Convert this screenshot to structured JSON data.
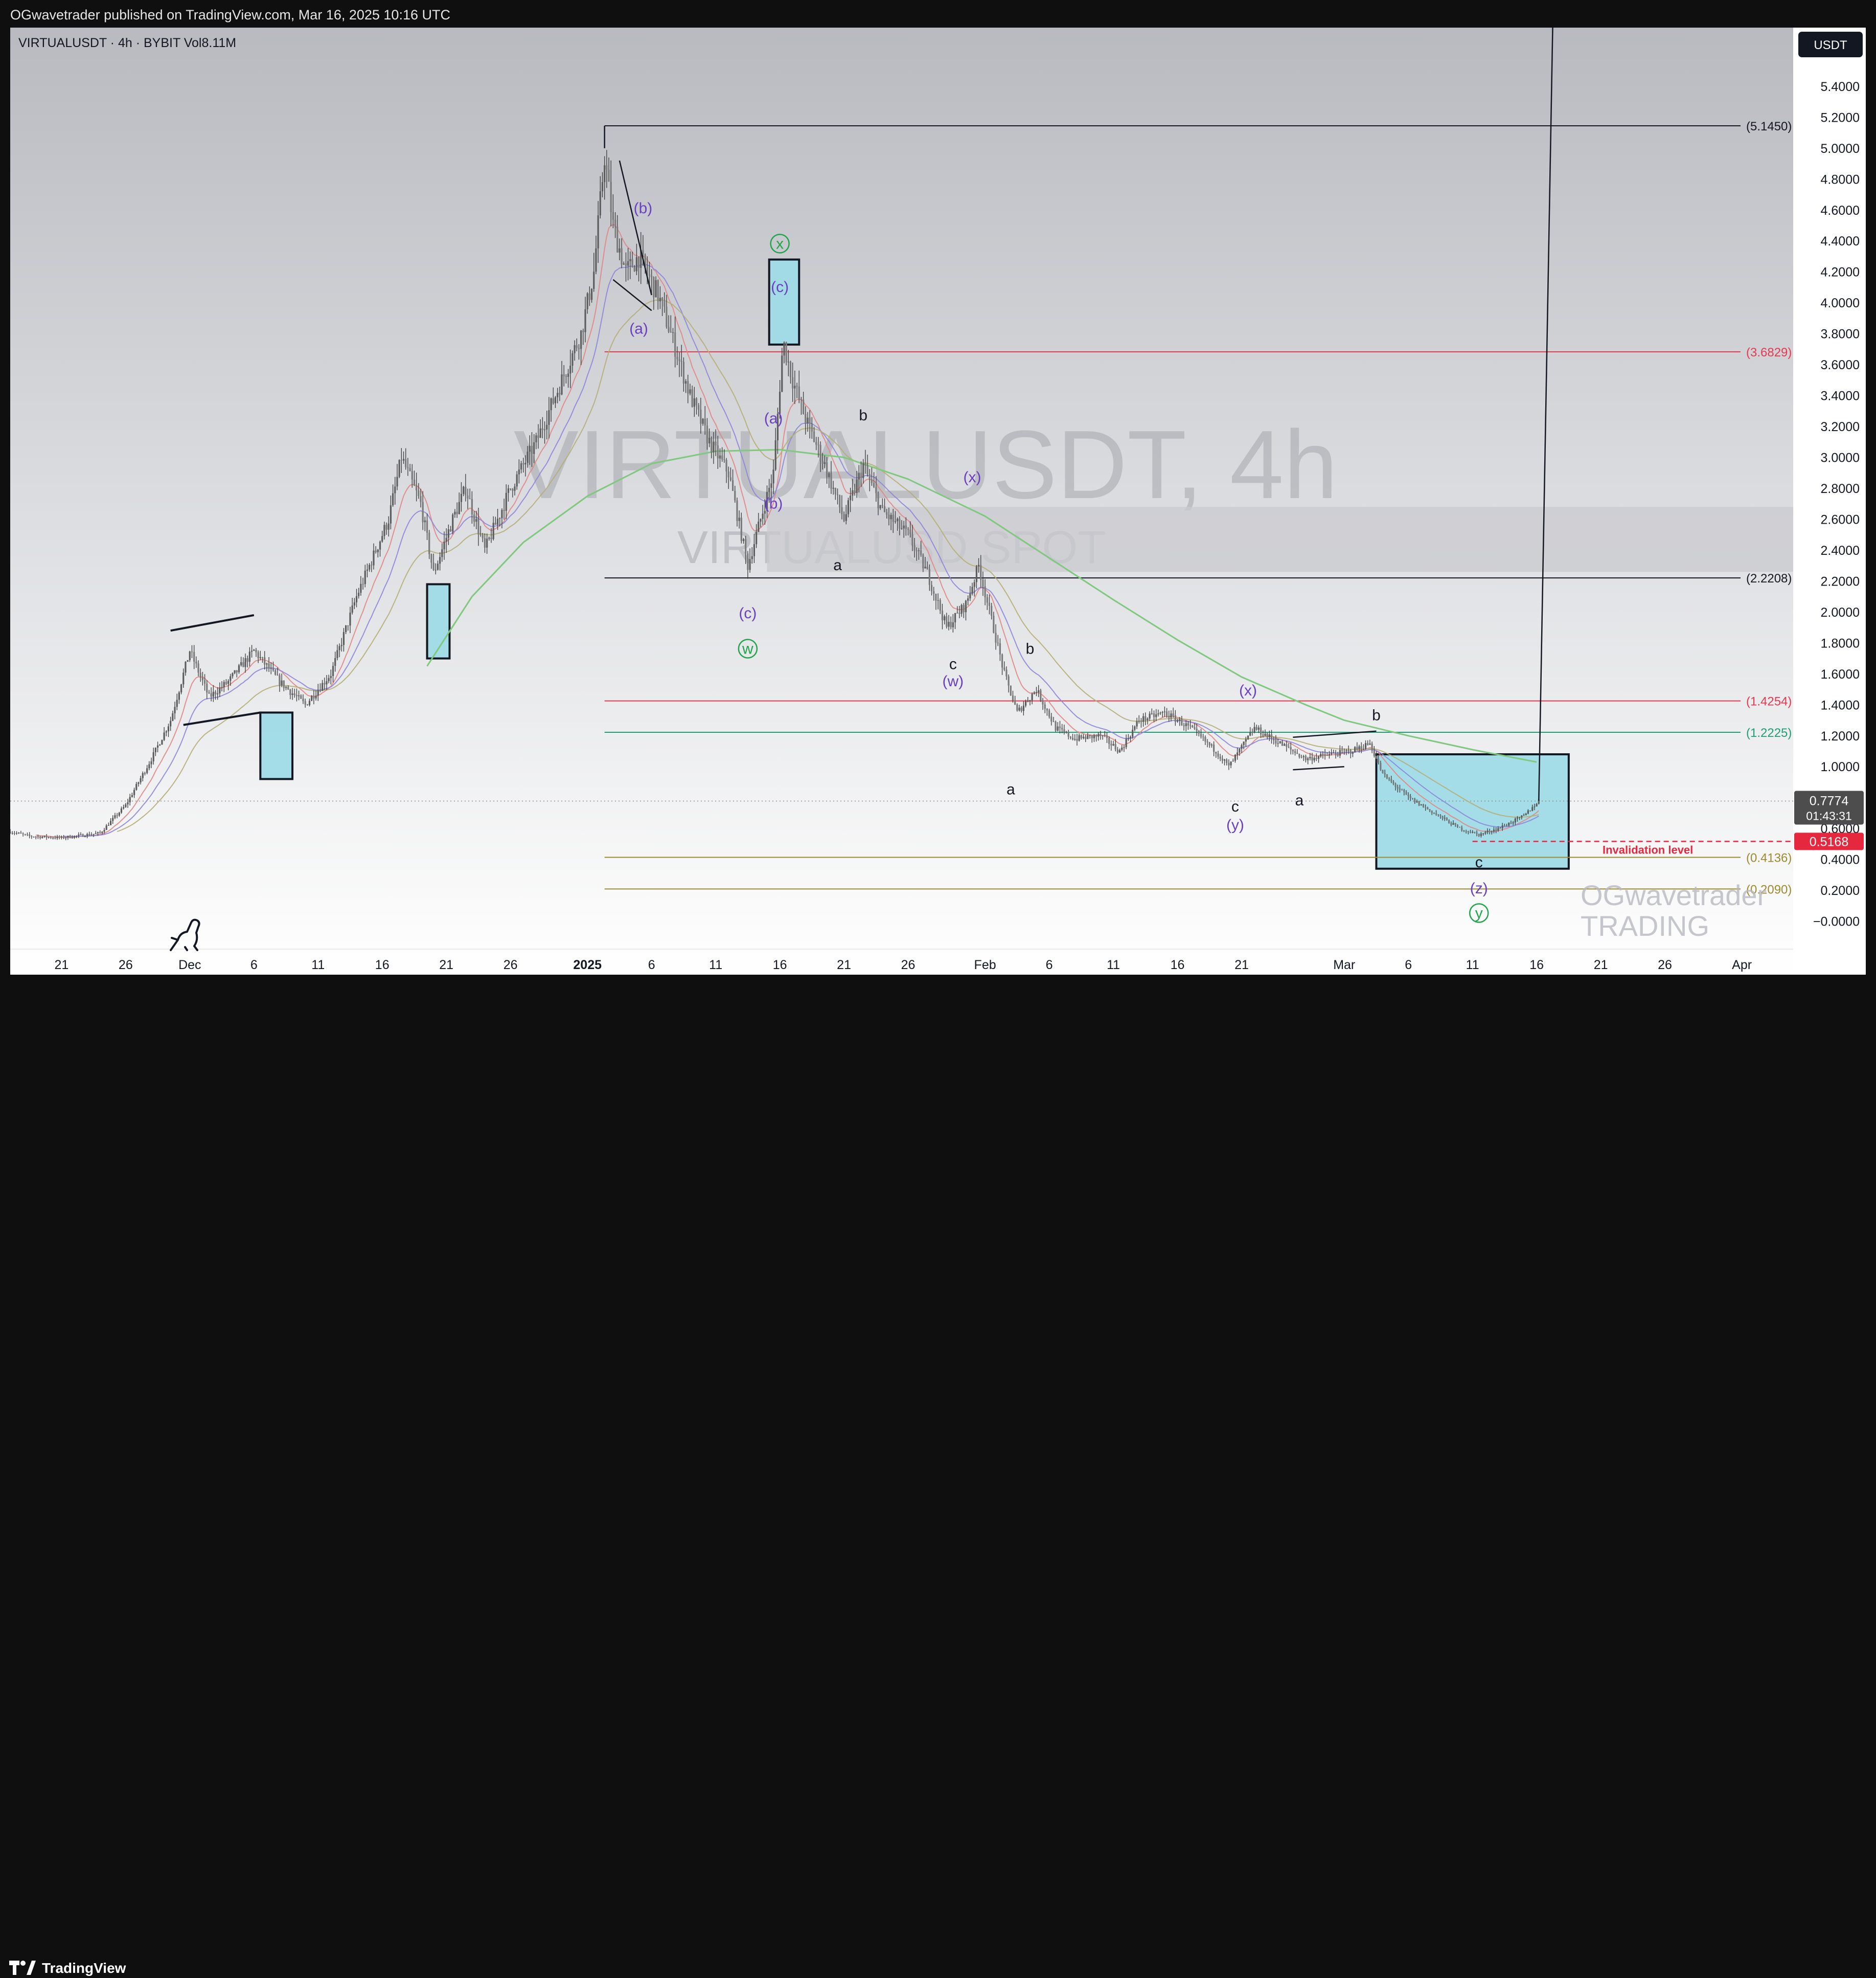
{
  "header": {
    "published_text": "OGwavetrader published on TradingView.com, Mar 16, 2025 10:16 UTC"
  },
  "footer": {
    "brand": "TradingView"
  },
  "colors": {
    "up_candle": "#5d5d5d",
    "down_candle": "#7a7a7a",
    "ema_long": "#7fc97f",
    "box_fill": "#9fdbe6",
    "resistance_red": "#e53950",
    "support_green": "#1e9e74",
    "fib_gold": "#9c8a2e",
    "label_purple": "#6a3fc2",
    "label_green": "#22a44a",
    "invalidation_red": "#e5283d"
  },
  "chart_data": {
    "type": "candlestick",
    "symbol_line": {
      "symbol": "VIRTUALUSDT",
      "interval": "4h",
      "exchange": "BYBIT",
      "volume": "Vol",
      "volume_value": "8.11M"
    },
    "watermark": {
      "main": "VIRTUALUSDT, 4h",
      "sub": "VIRTUALUSD SPOT"
    },
    "author_watermark": [
      "OGwavetrader",
      "TRADING"
    ],
    "currency_label": "USDT",
    "y_range": [
      -0.18,
      5.78
    ],
    "y_ticks": [
      {
        "v": 5.4,
        "label": "5.4000"
      },
      {
        "v": 5.2,
        "label": "5.2000"
      },
      {
        "v": 5.0,
        "label": "5.0000"
      },
      {
        "v": 4.8,
        "label": "4.8000"
      },
      {
        "v": 4.6,
        "label": "4.6000"
      },
      {
        "v": 4.4,
        "label": "4.4000"
      },
      {
        "v": 4.2,
        "label": "4.2000"
      },
      {
        "v": 4.0,
        "label": "4.0000"
      },
      {
        "v": 3.8,
        "label": "3.8000"
      },
      {
        "v": 3.6,
        "label": "3.6000"
      },
      {
        "v": 3.4,
        "label": "3.4000"
      },
      {
        "v": 3.2,
        "label": "3.2000"
      },
      {
        "v": 3.0,
        "label": "3.0000"
      },
      {
        "v": 2.8,
        "label": "2.8000"
      },
      {
        "v": 2.6,
        "label": "2.6000"
      },
      {
        "v": 2.4,
        "label": "2.4000"
      },
      {
        "v": 2.2,
        "label": "2.2000"
      },
      {
        "v": 2.0,
        "label": "2.0000"
      },
      {
        "v": 1.8,
        "label": "1.8000"
      },
      {
        "v": 1.6,
        "label": "1.6000"
      },
      {
        "v": 1.4,
        "label": "1.4000"
      },
      {
        "v": 1.2,
        "label": "1.2000"
      },
      {
        "v": 1.0,
        "label": "1.0000"
      },
      {
        "v": 0.6,
        "label": "0.6000"
      },
      {
        "v": 0.4,
        "label": "0.4000"
      },
      {
        "v": 0.2,
        "label": "0.2000"
      },
      {
        "v": 0.0,
        "label": "−0.0000"
      }
    ],
    "x_range": [
      "2024-11-17T00:00",
      "2025-04-05T00:00"
    ],
    "x_ticks": [
      {
        "date": "2024-11-21",
        "label": "21"
      },
      {
        "date": "2024-11-26",
        "label": "26"
      },
      {
        "date": "2024-12-01",
        "label": "Dec"
      },
      {
        "date": "2024-12-06",
        "label": "6"
      },
      {
        "date": "2024-12-11",
        "label": "11"
      },
      {
        "date": "2024-12-16",
        "label": "16"
      },
      {
        "date": "2024-12-21",
        "label": "21"
      },
      {
        "date": "2024-12-26",
        "label": "26"
      },
      {
        "date": "2025-01-01",
        "label": "2025",
        "bold": true
      },
      {
        "date": "2025-01-06",
        "label": "6"
      },
      {
        "date": "2025-01-11",
        "label": "11"
      },
      {
        "date": "2025-01-16",
        "label": "16"
      },
      {
        "date": "2025-01-21",
        "label": "21"
      },
      {
        "date": "2025-01-26",
        "label": "26"
      },
      {
        "date": "2025-02-01",
        "label": "Feb"
      },
      {
        "date": "2025-02-06",
        "label": "6"
      },
      {
        "date": "2025-02-11",
        "label": "11"
      },
      {
        "date": "2025-02-16",
        "label": "16"
      },
      {
        "date": "2025-02-21",
        "label": "21"
      },
      {
        "date": "2025-03-01",
        "label": "Mar"
      },
      {
        "date": "2025-03-06",
        "label": "6"
      },
      {
        "date": "2025-03-11",
        "label": "11"
      },
      {
        "date": "2025-03-16",
        "label": "16"
      },
      {
        "date": "2025-03-21",
        "label": "21"
      },
      {
        "date": "2025-03-26",
        "label": "26"
      },
      {
        "date": "2025-04-01",
        "label": "Apr"
      }
    ],
    "price_path": [
      [
        "2024-11-17T00:00",
        0.58
      ],
      [
        "2024-11-18T12:00",
        0.55
      ],
      [
        "2024-11-21T00:00",
        0.54
      ],
      [
        "2024-11-24T00:00",
        0.57
      ],
      [
        "2024-11-26T00:00",
        0.75
      ],
      [
        "2024-11-28T00:00",
        1.05
      ],
      [
        "2024-11-29T12:00",
        1.3
      ],
      [
        "2024-12-01T00:00",
        1.75
      ],
      [
        "2024-12-02T12:00",
        1.45
      ],
      [
        "2024-12-04T00:00",
        1.55
      ],
      [
        "2024-12-06T00:00",
        1.75
      ],
      [
        "2024-12-08T00:00",
        1.55
      ],
      [
        "2024-12-10T00:00",
        1.4
      ],
      [
        "2024-12-12T00:00",
        1.6
      ],
      [
        "2024-12-14T00:00",
        2.1
      ],
      [
        "2024-12-16T12:00",
        2.6
      ],
      [
        "2024-12-17T12:00",
        3.0
      ],
      [
        "2024-12-19T00:00",
        2.7
      ],
      [
        "2024-12-20T00:00",
        2.25
      ],
      [
        "2024-12-21T12:00",
        2.6
      ],
      [
        "2024-12-22T12:00",
        2.8
      ],
      [
        "2024-12-24T00:00",
        2.4
      ],
      [
        "2024-12-26T00:00",
        2.8
      ],
      [
        "2024-12-28T00:00",
        3.1
      ],
      [
        "2024-12-30T00:00",
        3.5
      ],
      [
        "2024-12-31T12:00",
        3.8
      ],
      [
        "2025-01-01T12:00",
        4.2
      ],
      [
        "2025-01-02T08:00",
        4.95
      ],
      [
        "2025-01-03T00:00",
        4.5
      ],
      [
        "2025-01-04T00:00",
        4.2
      ],
      [
        "2025-01-05T00:00",
        4.3
      ],
      [
        "2025-01-06T12:00",
        4.05
      ],
      [
        "2025-01-07T12:00",
        3.8
      ],
      [
        "2025-01-09T00:00",
        3.4
      ],
      [
        "2025-01-10T12:00",
        3.1
      ],
      [
        "2025-01-12T00:00",
        2.9
      ],
      [
        "2025-01-13T12:00",
        2.3
      ],
      [
        "2025-01-14T12:00",
        2.6
      ],
      [
        "2025-01-15T12:00",
        2.9
      ],
      [
        "2025-01-16T06:00",
        3.75
      ],
      [
        "2025-01-17T00:00",
        3.5
      ],
      [
        "2025-01-18T00:00",
        3.25
      ],
      [
        "2025-01-19T12:00",
        2.95
      ],
      [
        "2025-01-21T00:00",
        2.6
      ],
      [
        "2025-01-22T12:00",
        2.95
      ],
      [
        "2025-01-24T00:00",
        2.65
      ],
      [
        "2025-01-26T00:00",
        2.5
      ],
      [
        "2025-01-27T12:00",
        2.25
      ],
      [
        "2025-01-29T00:00",
        1.9
      ],
      [
        "2025-01-30T12:00",
        2.05
      ],
      [
        "2025-01-31T12:00",
        2.3
      ],
      [
        "2025-02-01T12:00",
        1.95
      ],
      [
        "2025-02-02T12:00",
        1.6
      ],
      [
        "2025-02-03T12:00",
        1.35
      ],
      [
        "2025-02-05T00:00",
        1.5
      ],
      [
        "2025-02-06T12:00",
        1.25
      ],
      [
        "2025-02-08T00:00",
        1.18
      ],
      [
        "2025-02-10T00:00",
        1.2
      ],
      [
        "2025-02-11T12:00",
        1.1
      ],
      [
        "2025-02-13T00:00",
        1.3
      ],
      [
        "2025-02-15T00:00",
        1.35
      ],
      [
        "2025-02-17T00:00",
        1.25
      ],
      [
        "2025-02-19T00:00",
        1.1
      ],
      [
        "2025-02-20T00:00",
        1.0
      ],
      [
        "2025-02-22T00:00",
        1.25
      ],
      [
        "2025-02-24T00:00",
        1.15
      ],
      [
        "2025-02-26T00:00",
        1.05
      ],
      [
        "2025-02-28T00:00",
        1.08
      ],
      [
        "2025-03-01T12:00",
        1.1
      ],
      [
        "2025-03-03T00:00",
        1.15
      ],
      [
        "2025-03-04T00:00",
        0.95
      ],
      [
        "2025-03-06T00:00",
        0.8
      ],
      [
        "2025-03-08T00:00",
        0.7
      ],
      [
        "2025-03-10T00:00",
        0.6
      ],
      [
        "2025-03-11T12:00",
        0.56
      ],
      [
        "2025-03-13T00:00",
        0.6
      ],
      [
        "2025-03-15T00:00",
        0.68
      ],
      [
        "2025-03-16T04:00",
        0.78
      ]
    ],
    "ema_long_path": [
      [
        "2024-12-19T12:00",
        1.65
      ],
      [
        "2024-12-23T00:00",
        2.1
      ],
      [
        "2024-12-27T00:00",
        2.45
      ],
      [
        "2025-01-01T00:00",
        2.75
      ],
      [
        "2025-01-06T00:00",
        2.96
      ],
      [
        "2025-01-11T00:00",
        3.04
      ],
      [
        "2025-01-16T00:00",
        3.05
      ],
      [
        "2025-01-21T00:00",
        3.0
      ],
      [
        "2025-01-26T00:00",
        2.86
      ],
      [
        "2025-02-01T00:00",
        2.62
      ],
      [
        "2025-02-06T00:00",
        2.35
      ],
      [
        "2025-02-11T00:00",
        2.08
      ],
      [
        "2025-02-16T00:00",
        1.82
      ],
      [
        "2025-02-21T00:00",
        1.58
      ],
      [
        "2025-02-26T00:00",
        1.4
      ],
      [
        "2025-03-01T00:00",
        1.3
      ],
      [
        "2025-03-06T00:00",
        1.2
      ],
      [
        "2025-03-11T00:00",
        1.11
      ],
      [
        "2025-03-16T00:00",
        1.03
      ]
    ],
    "horizontal_levels": [
      {
        "value": 5.145,
        "label": "(5.1450)",
        "color": "#131722",
        "from": "2025-01-02T08:00"
      },
      {
        "value": 3.6829,
        "label": "(3.6829)",
        "color": "#e53950",
        "from": "2025-01-02T08:00"
      },
      {
        "value": 2.2208,
        "label": "(2.2208)",
        "color": "#131722",
        "from": "2025-01-02T08:00"
      },
      {
        "value": 1.4254,
        "label": "(1.4254)",
        "color": "#e53950",
        "from": "2025-01-02T08:00"
      },
      {
        "value": 1.2225,
        "label": "(1.2225)",
        "color": "#1e9e74",
        "from": "2025-01-02T08:00"
      },
      {
        "value": 0.4136,
        "label": "(0.4136)",
        "color": "#9c8a2e",
        "from": "2025-01-02T08:00"
      },
      {
        "value": 0.209,
        "label": "(0.2090)",
        "color": "#9c8a2e",
        "from": "2025-01-02T08:00"
      }
    ],
    "zone": {
      "from": "2025-01-15T00:00",
      "to": "2025-04-05T00:00",
      "low": 2.26,
      "high": 2.68
    },
    "boxes": [
      {
        "from": "2024-12-06T12:00",
        "to": "2024-12-09T00:00",
        "low": 0.92,
        "high": 1.35
      },
      {
        "from": "2024-12-19T12:00",
        "to": "2024-12-21T06:00",
        "low": 1.7,
        "high": 2.18
      },
      {
        "from": "2025-01-15T04:00",
        "to": "2025-01-17T12:00",
        "low": 3.73,
        "high": 4.28
      },
      {
        "from": "2025-03-03T12:00",
        "to": "2025-03-18T12:00",
        "low": 0.34,
        "high": 1.08
      }
    ],
    "wave_labels": [
      {
        "text": "(b)",
        "date": "2025-01-05T08:00",
        "value": 4.58,
        "color": "#6a3fc2"
      },
      {
        "text": "(a)",
        "date": "2025-01-05T00:00",
        "value": 3.8,
        "color": "#6a3fc2"
      },
      {
        "text": "x",
        "date": "2025-01-16T00:00",
        "value": 4.35,
        "color": "#22a44a",
        "circle": true
      },
      {
        "text": "(c)",
        "date": "2025-01-16T00:00",
        "value": 4.07,
        "color": "#6a3fc2"
      },
      {
        "text": "(a)",
        "date": "2025-01-15T12:00",
        "value": 3.22,
        "color": "#6a3fc2"
      },
      {
        "text": "(b)",
        "date": "2025-01-15T12:00",
        "value": 2.67,
        "color": "#6a3fc2"
      },
      {
        "text": "b",
        "date": "2025-01-22T12:00",
        "value": 3.24,
        "color": "#131722"
      },
      {
        "text": "(x)",
        "date": "2025-01-31T00:00",
        "value": 2.84,
        "color": "#6a3fc2"
      },
      {
        "text": "a",
        "date": "2025-01-20T12:00",
        "value": 2.27,
        "color": "#131722"
      },
      {
        "text": "(c)",
        "date": "2025-01-13T12:00",
        "value": 1.96,
        "color": "#6a3fc2"
      },
      {
        "text": "w",
        "date": "2025-01-13T12:00",
        "value": 1.73,
        "color": "#22a44a",
        "circle": true
      },
      {
        "text": "c",
        "date": "2025-01-29T12:00",
        "value": 1.63,
        "color": "#131722"
      },
      {
        "text": "(w)",
        "date": "2025-01-29T12:00",
        "value": 1.52,
        "color": "#6a3fc2"
      },
      {
        "text": "b",
        "date": "2025-02-04T12:00",
        "value": 1.73,
        "color": "#131722"
      },
      {
        "text": "a",
        "date": "2025-02-03T00:00",
        "value": 0.82,
        "color": "#131722"
      },
      {
        "text": "(x)",
        "date": "2025-02-21T12:00",
        "value": 1.46,
        "color": "#6a3fc2"
      },
      {
        "text": "c",
        "date": "2025-02-20T12:00",
        "value": 0.71,
        "color": "#131722"
      },
      {
        "text": "(y)",
        "date": "2025-02-20T12:00",
        "value": 0.59,
        "color": "#6a3fc2"
      },
      {
        "text": "a",
        "date": "2025-02-25T12:00",
        "value": 0.75,
        "color": "#131722"
      },
      {
        "text": "b",
        "date": "2025-03-03T12:00",
        "value": 1.3,
        "color": "#131722"
      },
      {
        "text": "c",
        "date": "2025-03-11T12:00",
        "value": 0.35,
        "color": "#131722"
      },
      {
        "text": "(z)",
        "date": "2025-03-11T12:00",
        "value": 0.18,
        "color": "#6a3fc2"
      },
      {
        "text": "y",
        "date": "2025-03-11T12:00",
        "value": 0.02,
        "color": "#22a44a",
        "circle": true
      }
    ],
    "trend_lines": [
      {
        "from": [
          "2025-01-02T08:00",
          5.145
        ],
        "to": [
          "2025-01-02T08:00",
          5.0
        ]
      },
      {
        "from": [
          "2025-01-03T12:00",
          4.92
        ],
        "to": [
          "2025-01-06T00:00",
          4.05
        ]
      },
      {
        "from": [
          "2025-01-03T00:00",
          4.15
        ],
        "to": [
          "2025-01-06T00:00",
          3.95
        ]
      },
      {
        "from": [
          "2024-11-29T12:00",
          1.88
        ],
        "to": [
          "2024-12-06T00:00",
          1.98
        ]
      },
      {
        "from": [
          "2024-11-30T12:00",
          1.27
        ],
        "to": [
          "2024-12-06T12:00",
          1.35
        ]
      },
      {
        "from": [
          "2025-02-25T00:00",
          1.19
        ],
        "to": [
          "2025-03-03T12:00",
          1.23
        ]
      },
      {
        "from": [
          "2025-02-25T00:00",
          0.98
        ],
        "to": [
          "2025-03-01T00:00",
          1.0
        ]
      },
      {
        "from": [
          "2025-03-16T04:00",
          0.78
        ],
        "to": [
          "2025-03-17T06:00",
          5.78
        ]
      }
    ],
    "last_price": {
      "label": "0.7774",
      "countdown": "01:43:31",
      "value": 0.7774
    },
    "invalidation": {
      "value": 0.5168,
      "price_label": "0.5168",
      "label": "Invalidation level",
      "from": "2025-03-11T00:00"
    }
  }
}
